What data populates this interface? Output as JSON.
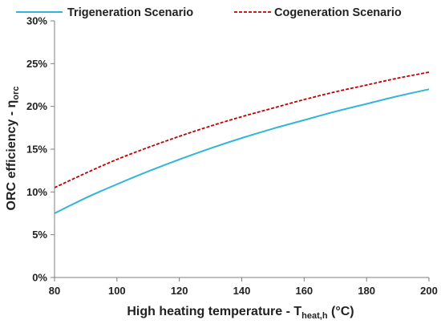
{
  "chart_data": {
    "type": "line",
    "title": "",
    "xlabel": {
      "main": "High heating temperature - T",
      "sub": "heat,h",
      "unit": " (°C)"
    },
    "ylabel": {
      "main": "ORC efficiency - η",
      "sub": "orc"
    },
    "xlim": [
      80,
      200
    ],
    "ylim": [
      0,
      30
    ],
    "x_ticks": [
      "80",
      "100",
      "120",
      "140",
      "160",
      "180",
      "200"
    ],
    "y_ticks": [
      "0%",
      "5%",
      "10%",
      "15%",
      "20%",
      "25%",
      "30%"
    ],
    "x_tick_values": [
      80,
      100,
      120,
      140,
      160,
      180,
      200
    ],
    "y_tick_values": [
      0,
      5,
      10,
      15,
      20,
      25,
      30
    ],
    "grid": false,
    "legend_position": "top",
    "series": [
      {
        "name": "Trigeneration Scenario",
        "color": "#33b5d6",
        "style": "solid",
        "x": [
          80,
          90,
          100,
          110,
          120,
          130,
          140,
          150,
          160,
          170,
          180,
          190,
          200
        ],
        "y": [
          7.5,
          9.3,
          10.9,
          12.4,
          13.8,
          15.1,
          16.3,
          17.4,
          18.4,
          19.4,
          20.3,
          21.2,
          22.0
        ]
      },
      {
        "name": "Cogeneration Scenario",
        "color": "#c00000",
        "style": "dashed",
        "x": [
          80,
          90,
          100,
          110,
          120,
          130,
          140,
          150,
          160,
          170,
          180,
          190,
          200
        ],
        "y": [
          10.5,
          12.2,
          13.8,
          15.2,
          16.5,
          17.7,
          18.8,
          19.8,
          20.8,
          21.7,
          22.5,
          23.3,
          24.0
        ]
      }
    ]
  }
}
